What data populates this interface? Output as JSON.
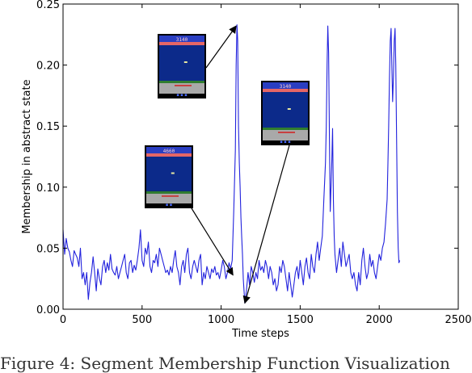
{
  "chart_data": {
    "type": "line",
    "title": "",
    "xlabel": "Time steps",
    "ylabel": "Membership in abstract state",
    "xlim": [
      0,
      2500
    ],
    "ylim": [
      0,
      0.25
    ],
    "x_ticks": [
      "0",
      "500",
      "1000",
      "1500",
      "2000",
      "2500"
    ],
    "y_ticks": [
      "0.00",
      "0.05",
      "0.10",
      "0.15",
      "0.20",
      "0.25"
    ],
    "grid": false,
    "legend": "none",
    "series": [
      {
        "color": "#2222dd",
        "points": [
          [
            0,
            0.065
          ],
          [
            10,
            0.045
          ],
          [
            20,
            0.058
          ],
          [
            30,
            0.05
          ],
          [
            40,
            0.047
          ],
          [
            50,
            0.04
          ],
          [
            60,
            0.035
          ],
          [
            70,
            0.048
          ],
          [
            80,
            0.045
          ],
          [
            90,
            0.042
          ],
          [
            100,
            0.035
          ],
          [
            110,
            0.05
          ],
          [
            120,
            0.025
          ],
          [
            130,
            0.03
          ],
          [
            140,
            0.02
          ],
          [
            150,
            0.03
          ],
          [
            160,
            0.008
          ],
          [
            170,
            0.022
          ],
          [
            180,
            0.03
          ],
          [
            190,
            0.043
          ],
          [
            200,
            0.03
          ],
          [
            210,
            0.015
          ],
          [
            220,
            0.033
          ],
          [
            230,
            0.025
          ],
          [
            240,
            0.02
          ],
          [
            250,
            0.035
          ],
          [
            260,
            0.04
          ],
          [
            270,
            0.03
          ],
          [
            280,
            0.038
          ],
          [
            290,
            0.032
          ],
          [
            300,
            0.045
          ],
          [
            310,
            0.033
          ],
          [
            320,
            0.03
          ],
          [
            330,
            0.028
          ],
          [
            340,
            0.035
          ],
          [
            350,
            0.025
          ],
          [
            360,
            0.03
          ],
          [
            370,
            0.035
          ],
          [
            380,
            0.04
          ],
          [
            390,
            0.045
          ],
          [
            400,
            0.03
          ],
          [
            410,
            0.025
          ],
          [
            420,
            0.038
          ],
          [
            430,
            0.04
          ],
          [
            440,
            0.03
          ],
          [
            450,
            0.036
          ],
          [
            460,
            0.032
          ],
          [
            470,
            0.04
          ],
          [
            480,
            0.05
          ],
          [
            490,
            0.065
          ],
          [
            500,
            0.04
          ],
          [
            510,
            0.035
          ],
          [
            520,
            0.05
          ],
          [
            530,
            0.045
          ],
          [
            540,
            0.055
          ],
          [
            550,
            0.035
          ],
          [
            560,
            0.03
          ],
          [
            570,
            0.04
          ],
          [
            580,
            0.038
          ],
          [
            590,
            0.045
          ],
          [
            600,
            0.035
          ],
          [
            610,
            0.05
          ],
          [
            620,
            0.045
          ],
          [
            630,
            0.04
          ],
          [
            640,
            0.035
          ],
          [
            650,
            0.03
          ],
          [
            660,
            0.032
          ],
          [
            670,
            0.028
          ],
          [
            680,
            0.035
          ],
          [
            690,
            0.03
          ],
          [
            700,
            0.04
          ],
          [
            710,
            0.048
          ],
          [
            720,
            0.035
          ],
          [
            730,
            0.03
          ],
          [
            740,
            0.02
          ],
          [
            750,
            0.035
          ],
          [
            760,
            0.04
          ],
          [
            770,
            0.03
          ],
          [
            780,
            0.045
          ],
          [
            790,
            0.05
          ],
          [
            800,
            0.03
          ],
          [
            810,
            0.025
          ],
          [
            820,
            0.035
          ],
          [
            830,
            0.04
          ],
          [
            840,
            0.035
          ],
          [
            850,
            0.03
          ],
          [
            860,
            0.04
          ],
          [
            870,
            0.045
          ],
          [
            880,
            0.02
          ],
          [
            890,
            0.03
          ],
          [
            900,
            0.025
          ],
          [
            910,
            0.035
          ],
          [
            920,
            0.03
          ],
          [
            930,
            0.025
          ],
          [
            940,
            0.033
          ],
          [
            950,
            0.03
          ],
          [
            960,
            0.035
          ],
          [
            970,
            0.028
          ],
          [
            980,
            0.03
          ],
          [
            990,
            0.025
          ],
          [
            1000,
            0.032
          ],
          [
            1010,
            0.04
          ],
          [
            1020,
            0.035
          ],
          [
            1030,
            0.025
          ],
          [
            1040,
            0.03
          ],
          [
            1050,
            0.038
          ],
          [
            1060,
            0.033
          ],
          [
            1070,
            0.04
          ],
          [
            1080,
            0.08
          ],
          [
            1090,
            0.13
          ],
          [
            1095,
            0.2
          ],
          [
            1100,
            0.233
          ],
          [
            1105,
            0.22
          ],
          [
            1110,
            0.15
          ],
          [
            1115,
            0.12
          ],
          [
            1120,
            0.1
          ],
          [
            1125,
            0.075
          ],
          [
            1130,
            0.06
          ],
          [
            1135,
            0.045
          ],
          [
            1140,
            0.025
          ],
          [
            1150,
            0.005
          ],
          [
            1160,
            0.015
          ],
          [
            1170,
            0.03
          ],
          [
            1180,
            0.02
          ],
          [
            1190,
            0.035
          ],
          [
            1200,
            0.03
          ],
          [
            1210,
            0.022
          ],
          [
            1220,
            0.03
          ],
          [
            1230,
            0.025
          ],
          [
            1240,
            0.04
          ],
          [
            1250,
            0.032
          ],
          [
            1260,
            0.035
          ],
          [
            1270,
            0.03
          ],
          [
            1280,
            0.04
          ],
          [
            1290,
            0.035
          ],
          [
            1300,
            0.025
          ],
          [
            1310,
            0.035
          ],
          [
            1320,
            0.03
          ],
          [
            1330,
            0.02
          ],
          [
            1340,
            0.025
          ],
          [
            1350,
            0.015
          ],
          [
            1360,
            0.02
          ],
          [
            1370,
            0.035
          ],
          [
            1380,
            0.03
          ],
          [
            1390,
            0.04
          ],
          [
            1400,
            0.035
          ],
          [
            1410,
            0.025
          ],
          [
            1420,
            0.015
          ],
          [
            1430,
            0.03
          ],
          [
            1440,
            0.02
          ],
          [
            1450,
            0.01
          ],
          [
            1460,
            0.02
          ],
          [
            1470,
            0.03
          ],
          [
            1480,
            0.035
          ],
          [
            1490,
            0.025
          ],
          [
            1500,
            0.04
          ],
          [
            1510,
            0.03
          ],
          [
            1520,
            0.02
          ],
          [
            1530,
            0.035
          ],
          [
            1540,
            0.042
          ],
          [
            1550,
            0.03
          ],
          [
            1560,
            0.025
          ],
          [
            1570,
            0.045
          ],
          [
            1580,
            0.035
          ],
          [
            1590,
            0.03
          ],
          [
            1600,
            0.045
          ],
          [
            1610,
            0.055
          ],
          [
            1620,
            0.04
          ],
          [
            1630,
            0.05
          ],
          [
            1640,
            0.06
          ],
          [
            1650,
            0.09
          ],
          [
            1660,
            0.12
          ],
          [
            1665,
            0.15
          ],
          [
            1670,
            0.2
          ],
          [
            1675,
            0.232
          ],
          [
            1680,
            0.21
          ],
          [
            1685,
            0.14
          ],
          [
            1690,
            0.08
          ],
          [
            1700,
            0.12
          ],
          [
            1705,
            0.148
          ],
          [
            1710,
            0.09
          ],
          [
            1715,
            0.06
          ],
          [
            1720,
            0.045
          ],
          [
            1730,
            0.03
          ],
          [
            1740,
            0.04
          ],
          [
            1750,
            0.05
          ],
          [
            1760,
            0.035
          ],
          [
            1770,
            0.055
          ],
          [
            1780,
            0.045
          ],
          [
            1790,
            0.035
          ],
          [
            1800,
            0.04
          ],
          [
            1810,
            0.045
          ],
          [
            1820,
            0.03
          ],
          [
            1830,
            0.025
          ],
          [
            1840,
            0.03
          ],
          [
            1850,
            0.02
          ],
          [
            1860,
            0.015
          ],
          [
            1870,
            0.03
          ],
          [
            1880,
            0.02
          ],
          [
            1890,
            0.04
          ],
          [
            1900,
            0.05
          ],
          [
            1910,
            0.035
          ],
          [
            1920,
            0.025
          ],
          [
            1930,
            0.03
          ],
          [
            1940,
            0.045
          ],
          [
            1950,
            0.035
          ],
          [
            1960,
            0.04
          ],
          [
            1970,
            0.03
          ],
          [
            1980,
            0.025
          ],
          [
            1990,
            0.035
          ],
          [
            2000,
            0.045
          ],
          [
            2010,
            0.04
          ],
          [
            2020,
            0.05
          ],
          [
            2030,
            0.055
          ],
          [
            2040,
            0.07
          ],
          [
            2050,
            0.09
          ],
          [
            2055,
            0.12
          ],
          [
            2060,
            0.15
          ],
          [
            2065,
            0.19
          ],
          [
            2070,
            0.22
          ],
          [
            2075,
            0.23
          ],
          [
            2080,
            0.2
          ],
          [
            2085,
            0.17
          ],
          [
            2090,
            0.19
          ],
          [
            2095,
            0.22
          ],
          [
            2100,
            0.23
          ],
          [
            2105,
            0.2
          ],
          [
            2110,
            0.14
          ],
          [
            2115,
            0.08
          ],
          [
            2120,
            0.05
          ],
          [
            2125,
            0.038
          ],
          [
            2130,
            0.04
          ]
        ]
      }
    ],
    "insets": [
      {
        "score": "3140",
        "lives": "▪ ▪ ▪",
        "sky": "#2a3ec2",
        "water": "#0c2a8a",
        "band": "#e66666",
        "floor": "#a9a9a9",
        "grass": "#2f7d2f"
      },
      {
        "score": "4660",
        "lives": "▪ ▪",
        "sky": "#2a3ec2",
        "water": "#0c2a8a",
        "band": "#e66666",
        "floor": "#a9a9a9",
        "grass": "#2f7d2f"
      },
      {
        "score": "3140",
        "lives": "▪ ▪ ▪",
        "sky": "#2a3ec2",
        "water": "#0c2a8a",
        "band": "#e66666",
        "floor": "#a9a9a9",
        "grass": "#2f7d2f"
      }
    ]
  },
  "caption": "Figure 4: Segment Membership Function Visualization"
}
